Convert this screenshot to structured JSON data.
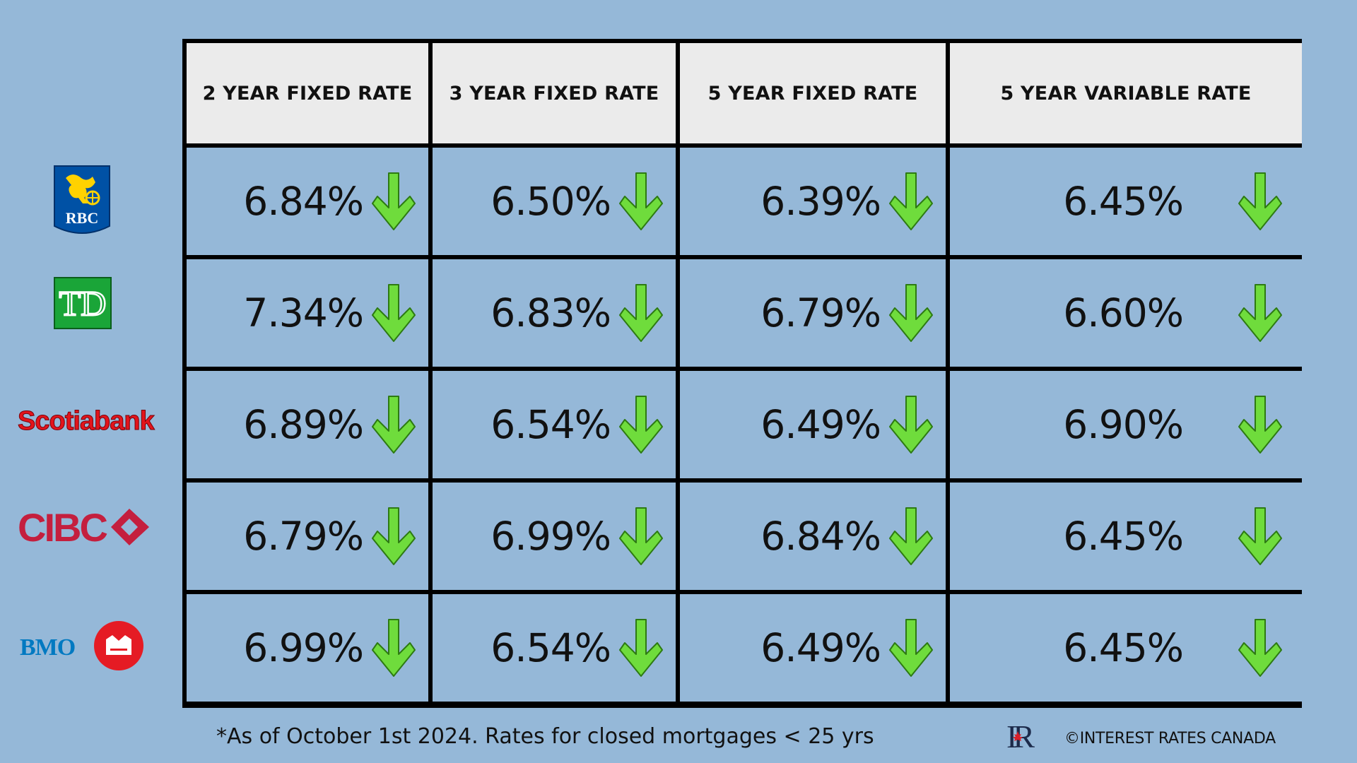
{
  "headers": [
    "2 YEAR FIXED RATE",
    "3 YEAR FIXED RATE",
    "5 YEAR FIXED RATE",
    "5 YEAR VARIABLE RATE"
  ],
  "banks": [
    {
      "name": "RBC",
      "logo_text": "RBC",
      "rates": [
        "6.84%",
        "6.50%",
        "6.39%",
        "6.45%"
      ]
    },
    {
      "name": "TD",
      "logo_text": "TD",
      "rates": [
        "7.34%",
        "6.83%",
        "6.79%",
        "6.60%"
      ]
    },
    {
      "name": "Scotiabank",
      "logo_text": "Scotiabank",
      "rates": [
        "6.89%",
        "6.54%",
        "6.49%",
        "6.90%"
      ]
    },
    {
      "name": "CIBC",
      "logo_text": "CIBC",
      "rates": [
        "6.79%",
        "6.99%",
        "6.84%",
        "6.45%"
      ]
    },
    {
      "name": "BMO",
      "logo_text": "BMO",
      "rates": [
        "6.99%",
        "6.54%",
        "6.49%",
        "6.45%"
      ]
    }
  ],
  "trend_icon": "arrow-down-icon",
  "footnote": "*As of October 1st 2024. Rates for closed mortgages < 25 yrs",
  "brand_logo_text": "IR",
  "copyright": "©INTEREST RATES CANADA",
  "colors": {
    "background": "#95b8d8",
    "header_bg": "#ebebeb",
    "arrow_fill": "#6fdc3c",
    "arrow_stroke": "#2d7a12",
    "rbc_blue": "#0051a5",
    "rbc_gold": "#ffd200",
    "td_green": "#1aa538",
    "scotia_red": "#e3141c",
    "cibc_red": "#c41f3e",
    "bmo_red": "#e51b24",
    "bmo_blue": "#0079c1"
  }
}
